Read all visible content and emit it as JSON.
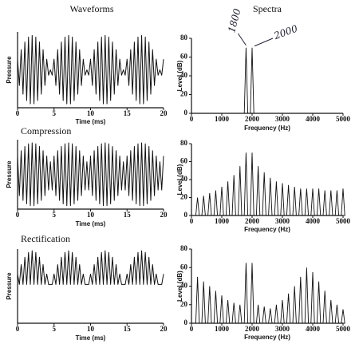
{
  "chart_data": [
    {
      "type": "line",
      "title": "Waveforms",
      "xlabel": "Time (ms)",
      "ylabel": "Pressure",
      "color": "#111111",
      "xlim": [
        0,
        20
      ],
      "xticks": [
        0,
        5,
        10,
        15,
        20
      ],
      "ylim": [
        -1.1,
        1.1
      ],
      "x": [
        0,
        0.25,
        0.5,
        0.75,
        1,
        1.25,
        1.5,
        1.75,
        2,
        2.25,
        2.5,
        2.75,
        3,
        3.25,
        3.5,
        3.75,
        4,
        4.25,
        4.5,
        4.75,
        5,
        5.25,
        5.5,
        5.75,
        6,
        6.25,
        6.5,
        6.75,
        7,
        7.25,
        7.5,
        7.75,
        8,
        8.25,
        8.5,
        8.75,
        9,
        9.25,
        9.5,
        9.75,
        10,
        10.25,
        10.5,
        10.75,
        11,
        11.25,
        11.5,
        11.75,
        12,
        12.25,
        12.5,
        12.75,
        13,
        13.25,
        13.5,
        13.75,
        14,
        14.25,
        14.5,
        14.75,
        15,
        15.25,
        15.5,
        15.75,
        16,
        16.25,
        16.5,
        16.75,
        17,
        17.25,
        17.5,
        17.75,
        18,
        18.25,
        18.5,
        18.75,
        19,
        19.25,
        19.5,
        19.75,
        20
      ],
      "values": [
        0.309,
        -0.454,
        0.588,
        -0.707,
        0.809,
        -0.891,
        0.951,
        -0.988,
        1,
        -0.988,
        0.951,
        -0.891,
        0.809,
        -0.707,
        0.588,
        -0.454,
        0.309,
        -0.156,
        0,
        -0.156,
        0.309,
        -0.454,
        0.588,
        -0.707,
        0.809,
        -0.891,
        0.951,
        -0.988,
        1,
        -0.988,
        0.951,
        -0.891,
        0.809,
        -0.707,
        0.588,
        -0.454,
        0.309,
        -0.156,
        0,
        -0.156,
        0.309,
        -0.454,
        0.588,
        -0.707,
        0.809,
        -0.891,
        0.951,
        -0.988,
        1,
        -0.988,
        0.951,
        -0.891,
        0.809,
        -0.707,
        0.588,
        -0.454,
        0.309,
        -0.156,
        0,
        -0.156,
        0.309,
        -0.454,
        0.588,
        -0.707,
        0.809,
        -0.891,
        0.951,
        -0.988,
        1,
        -0.988,
        0.951,
        -0.891,
        0.809,
        -0.707,
        0.588,
        -0.454,
        0.309,
        -0.156,
        0,
        -0.156,
        0.309
      ]
    },
    {
      "type": "stem",
      "title": "Spectra",
      "xlabel": "Frequency (Hz)",
      "ylabel": "Level (dB)",
      "color": "#111111",
      "xlim": [
        0,
        5000
      ],
      "xticks": [
        0,
        1000,
        2000,
        3000,
        4000,
        5000
      ],
      "ylim": [
        0,
        80
      ],
      "yticks": [
        0,
        20,
        40,
        60,
        80
      ],
      "x": [
        1800,
        2000
      ],
      "values": [
        70,
        70
      ],
      "annotations": [
        {
          "text": "1800",
          "x": 1800
        },
        {
          "text": "2000",
          "x": 2000
        }
      ]
    },
    {
      "type": "line",
      "title": "Compression",
      "xlabel": "Time (ms)",
      "ylabel": "Pressure",
      "color": "#111111",
      "xlim": [
        0,
        20
      ],
      "xticks": [
        0,
        5,
        10,
        15,
        20
      ],
      "ylim": [
        -1.1,
        1.1
      ],
      "x": [
        0,
        0.25,
        0.5,
        0.75,
        1,
        1.25,
        1.5,
        1.75,
        2,
        2.25,
        2.5,
        2.75,
        3,
        3.25,
        3.5,
        3.75,
        4,
        4.25,
        4.5,
        4.75,
        5,
        5.25,
        5.5,
        5.75,
        6,
        6.25,
        6.5,
        6.75,
        7,
        7.25,
        7.5,
        7.75,
        8,
        8.25,
        8.5,
        8.75,
        9,
        9.25,
        9.5,
        9.75,
        10,
        10.25,
        10.5,
        10.75,
        11,
        11.25,
        11.5,
        11.75,
        12,
        12.25,
        12.5,
        12.75,
        13,
        13.25,
        13.5,
        13.75,
        14,
        14.25,
        14.5,
        14.75,
        15,
        15.25,
        15.5,
        15.75,
        16,
        16.25,
        16.5,
        16.75,
        17,
        17.25,
        17.5,
        17.75,
        18,
        18.25,
        18.5,
        18.75,
        19,
        19.25,
        19.5,
        19.75,
        20
      ],
      "values": [
        0.585,
        -0.672,
        0.753,
        -0.824,
        0.885,
        -0.935,
        0.971,
        -0.993,
        1,
        -0.993,
        0.971,
        -0.935,
        0.885,
        -0.824,
        0.753,
        -0.672,
        0.585,
        -0.494,
        0.4,
        -0.494,
        0.585,
        -0.672,
        0.753,
        -0.824,
        0.885,
        -0.935,
        0.971,
        -0.993,
        1,
        -0.993,
        0.971,
        -0.935,
        0.885,
        -0.824,
        0.753,
        -0.672,
        0.585,
        -0.494,
        0.4,
        -0.494,
        0.585,
        -0.672,
        0.753,
        -0.824,
        0.885,
        -0.935,
        0.971,
        -0.993,
        1,
        -0.993,
        0.971,
        -0.935,
        0.885,
        -0.824,
        0.753,
        -0.672,
        0.585,
        -0.494,
        0.4,
        -0.494,
        0.585,
        -0.672,
        0.753,
        -0.824,
        0.885,
        -0.935,
        0.971,
        -0.993,
        1,
        -0.993,
        0.971,
        -0.935,
        0.885,
        -0.824,
        0.753,
        -0.672,
        0.585,
        -0.494,
        0.4,
        -0.494,
        0.585
      ]
    },
    {
      "type": "stem",
      "xlabel": "Frequency (Hz)",
      "ylabel": "Level (dB)",
      "color": "#111111",
      "xlim": [
        0,
        5000
      ],
      "xticks": [
        0,
        1000,
        2000,
        3000,
        4000,
        5000
      ],
      "ylim": [
        0,
        80
      ],
      "yticks": [
        0,
        20,
        40,
        60,
        80
      ],
      "x": [
        200,
        400,
        600,
        800,
        1000,
        1200,
        1400,
        1600,
        1800,
        2000,
        2200,
        2400,
        2600,
        2800,
        3000,
        3200,
        3400,
        3600,
        3800,
        4000,
        4200,
        4400,
        4600,
        4800,
        5000
      ],
      "values": [
        20,
        22,
        25,
        28,
        32,
        38,
        45,
        55,
        70,
        70,
        55,
        48,
        42,
        38,
        36,
        34,
        32,
        30,
        30,
        30,
        30,
        28,
        28,
        28,
        30
      ]
    },
    {
      "type": "line",
      "title": "Rectification",
      "xlabel": "Time (ms)",
      "ylabel": "Pressure",
      "color": "#111111",
      "xlim": [
        0,
        20
      ],
      "xticks": [
        0,
        5,
        10,
        15,
        20
      ],
      "ylim": [
        -1.15,
        1.05
      ],
      "x": [
        0,
        0.25,
        0.5,
        0.75,
        1,
        1.25,
        1.5,
        1.75,
        2,
        2.25,
        2.5,
        2.75,
        3,
        3.25,
        3.5,
        3.75,
        4,
        4.25,
        4.5,
        4.75,
        5,
        5.25,
        5.5,
        5.75,
        6,
        6.25,
        6.5,
        6.75,
        7,
        7.25,
        7.5,
        7.75,
        8,
        8.25,
        8.5,
        8.75,
        9,
        9.25,
        9.5,
        9.75,
        10,
        10.25,
        10.5,
        10.75,
        11,
        11.25,
        11.5,
        11.75,
        12,
        12.25,
        12.5,
        12.75,
        13,
        13.25,
        13.5,
        13.75,
        14,
        14.25,
        14.5,
        14.75,
        15,
        15.25,
        15.5,
        15.75,
        16,
        16.25,
        16.5,
        16.75,
        17,
        17.25,
        17.5,
        17.75,
        18,
        18.25,
        18.5,
        18.75,
        19,
        19.25,
        19.5,
        19.75,
        20
      ],
      "values": [
        0.309,
        0,
        0.588,
        0,
        0.809,
        0,
        0.951,
        0,
        1,
        0,
        0.951,
        0,
        0.809,
        0,
        0.588,
        0,
        0.309,
        0,
        0,
        0,
        0.309,
        0,
        0.588,
        0,
        0.809,
        0,
        0.951,
        0,
        1,
        0,
        0.951,
        0,
        0.809,
        0,
        0.588,
        0,
        0.309,
        0,
        0,
        0,
        0.309,
        0,
        0.588,
        0,
        0.809,
        0,
        0.951,
        0,
        1,
        0,
        0.951,
        0,
        0.809,
        0,
        0.588,
        0,
        0.309,
        0,
        0,
        0,
        0.309,
        0,
        0.588,
        0,
        0.809,
        0,
        0.951,
        0,
        1,
        0,
        0.951,
        0,
        0.809,
        0,
        0.588,
        0,
        0.309,
        0,
        0,
        0,
        0.309
      ]
    },
    {
      "type": "stem",
      "xlabel": "Frequency (Hz)",
      "ylabel": "Level (dB)",
      "color": "#111111",
      "xlim": [
        0,
        5000
      ],
      "xticks": [
        0,
        1000,
        2000,
        3000,
        4000,
        5000
      ],
      "ylim": [
        0,
        80
      ],
      "yticks": [
        0,
        20,
        40,
        60,
        80
      ],
      "x": [
        200,
        400,
        600,
        800,
        1000,
        1200,
        1400,
        1600,
        1800,
        2000,
        2200,
        2400,
        2600,
        2800,
        3000,
        3200,
        3400,
        3600,
        3800,
        4000,
        4200,
        4400,
        4600,
        4800,
        5000
      ],
      "values": [
        50,
        45,
        40,
        35,
        30,
        25,
        22,
        20,
        65,
        65,
        20,
        18,
        16,
        20,
        25,
        32,
        40,
        50,
        60,
        55,
        45,
        35,
        25,
        20,
        15
      ]
    }
  ]
}
